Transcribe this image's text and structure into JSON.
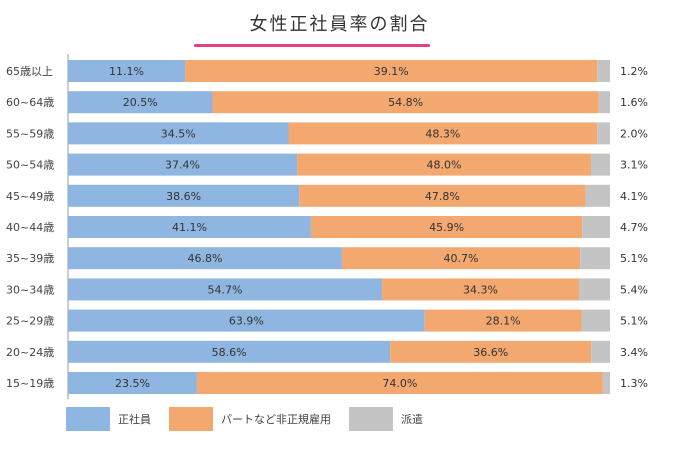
{
  "chart_data": {
    "type": "bar",
    "orientation": "horizontal",
    "stacked": true,
    "percent": true,
    "title": "女性正社員率の割合",
    "categories": [
      "65歳以上",
      "60~64歳",
      "55~59歳",
      "50~54歳",
      "45~49歳",
      "40~44歳",
      "35~39歳",
      "30~34歳",
      "25~29歳",
      "20~24歳",
      "15~19歳"
    ],
    "series": [
      {
        "name": "正社員",
        "color": "#8fb6e0",
        "values": [
          11.1,
          20.5,
          34.5,
          37.4,
          38.6,
          41.1,
          46.8,
          54.7,
          63.9,
          58.6,
          23.5
        ],
        "labels": [
          "11.1%",
          "20.5%",
          "34.5%",
          "37.4%",
          "38.6%",
          "41.1%",
          "46.8%",
          "54.7%",
          "63.9%",
          "58.6%",
          "23.5%"
        ]
      },
      {
        "name": "パートなど非正規雇用",
        "color": "#f2a86f",
        "values": [
          39.1,
          54.8,
          48.3,
          48.0,
          47.8,
          45.9,
          40.7,
          34.3,
          28.1,
          36.6,
          74.0
        ],
        "labels": [
          "39.1%",
          "54.8%",
          "48.3%",
          "48.0%",
          "47.8%",
          "45.9%",
          "40.7%",
          "34.3%",
          "28.1%",
          "36.6%",
          "74.0%"
        ]
      },
      {
        "name": "派遣",
        "color": "#c4c4c4",
        "values": [
          1.2,
          1.6,
          2.0,
          3.1,
          4.1,
          4.7,
          5.1,
          5.4,
          5.1,
          3.4,
          1.3
        ],
        "labels": [
          "1.2%",
          "1.6%",
          "2.0%",
          "3.1%",
          "4.1%",
          "4.7%",
          "5.1%",
          "5.4%",
          "5.1%",
          "3.4%",
          "1.3%"
        ]
      }
    ],
    "legend_position": "bottom-left",
    "grid": false
  }
}
